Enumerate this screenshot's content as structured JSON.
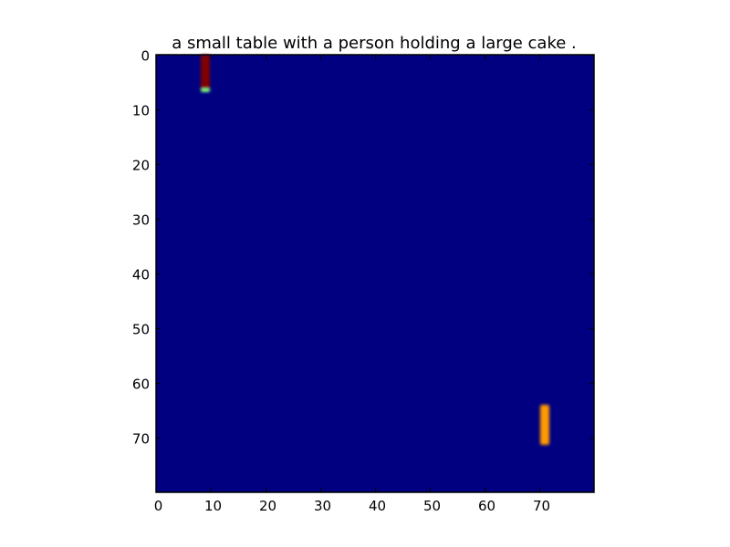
{
  "chart_data": {
    "type": "heatmap",
    "title": "a small table with a person holding a large cake .",
    "xlabel": "",
    "ylabel": "",
    "grid_size": 80,
    "xlim": [
      0,
      80
    ],
    "ylim": [
      80,
      0
    ],
    "x_ticks": [
      0,
      10,
      20,
      30,
      40,
      50,
      60,
      70
    ],
    "y_ticks": [
      0,
      10,
      20,
      30,
      40,
      50,
      60,
      70
    ],
    "x_tick_labels": [
      "0",
      "10",
      "20",
      "30",
      "40",
      "50",
      "60",
      "70"
    ],
    "y_tick_labels": [
      "0",
      "10",
      "20",
      "30",
      "40",
      "50",
      "60",
      "70"
    ],
    "background_value": 0.0,
    "colormap": "jet",
    "colors": {
      "background": "#000080",
      "low_mid": "#00c8ff",
      "mid": "#7fff7f",
      "high_mid": "#ff9900",
      "max": "#800000"
    },
    "hot_regions": [
      {
        "name": "top-left-column",
        "x_range": [
          8,
          9
        ],
        "y_range": [
          0,
          6
        ],
        "value": 1.0,
        "color": "#800000"
      },
      {
        "name": "top-left-tip",
        "x_range": [
          8,
          9
        ],
        "y_range": [
          6,
          6.5
        ],
        "value": 0.5,
        "color": "#7fff7f"
      },
      {
        "name": "bottom-right-bar",
        "x_range": [
          70,
          71
        ],
        "y_range": [
          64,
          71
        ],
        "value": 0.8,
        "color": "#ff9900"
      }
    ]
  }
}
